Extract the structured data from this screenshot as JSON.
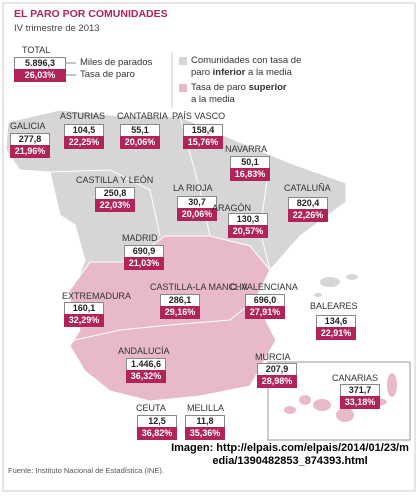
{
  "header": {
    "title": "EL PARO POR COMUNIDADES",
    "subtitle": "IV trimestre de 2013"
  },
  "total": {
    "label": "TOTAL",
    "value": "5.896,3",
    "rate": "26,03%",
    "value_caption": "Miles de parados",
    "rate_caption": "Tasa de paro"
  },
  "legend": {
    "below": [
      "Comunidades con tasa de paro ",
      "inferior",
      " a la media"
    ],
    "above": [
      "Tasa de paro ",
      "superior",
      " a la media"
    ]
  },
  "regions": [
    {
      "name": "GALICIA",
      "value": "277,8",
      "rate": "21,96%",
      "above_average": false
    },
    {
      "name": "ASTURIAS",
      "value": "104,5",
      "rate": "22,25%",
      "above_average": false
    },
    {
      "name": "CANTABRIA",
      "value": "55,1",
      "rate": "20,06%",
      "above_average": false
    },
    {
      "name": "PAÍS VASCO",
      "value": "158,4",
      "rate": "15,76%",
      "above_average": false
    },
    {
      "name": "NAVARRA",
      "value": "50,1",
      "rate": "16,83%",
      "above_average": false
    },
    {
      "name": "CASTILLA Y LEÓN",
      "value": "250,8",
      "rate": "22,03%",
      "above_average": false
    },
    {
      "name": "LA RIOJA",
      "value": "30,7",
      "rate": "20,06%",
      "above_average": false
    },
    {
      "name": "CATALUÑA",
      "value": "820,4",
      "rate": "22,26%",
      "above_average": false
    },
    {
      "name": "ARAGÓN",
      "value": "130,3",
      "rate": "20,57%",
      "above_average": false
    },
    {
      "name": "MADRID",
      "value": "690,9",
      "rate": "21,03%",
      "above_average": false
    },
    {
      "name": "EXTREMADURA",
      "value": "160,1",
      "rate": "32,29%",
      "above_average": true
    },
    {
      "name": "CASTILLA-LA MANCHA",
      "value": "286,1",
      "rate": "29,16%",
      "above_average": true
    },
    {
      "name": "C. VALENCIANA",
      "value": "696,0",
      "rate": "27,91%",
      "above_average": true
    },
    {
      "name": "BALEARES",
      "value": "134,6",
      "rate": "22,91%",
      "above_average": false
    },
    {
      "name": "ANDALUCÍA",
      "value": "1.446,6",
      "rate": "36,32%",
      "above_average": true
    },
    {
      "name": "MURCIA",
      "value": "207,9",
      "rate": "28,98%",
      "above_average": true
    },
    {
      "name": "CANARIAS",
      "value": "371,7",
      "rate": "33,18%",
      "above_average": true
    },
    {
      "name": "CEUTA",
      "value": "12,5",
      "rate": "36,82%",
      "above_average": true
    },
    {
      "name": "MELILLA",
      "value": "11,8",
      "rate": "35,36%",
      "above_average": true
    }
  ],
  "footer": {
    "source": "Fuente: Instituto Nacional de Estadística (INE).",
    "image": "Imagen: http://elpais.com/elpais/2014/01/23/media/1390482853_874393.html"
  }
}
